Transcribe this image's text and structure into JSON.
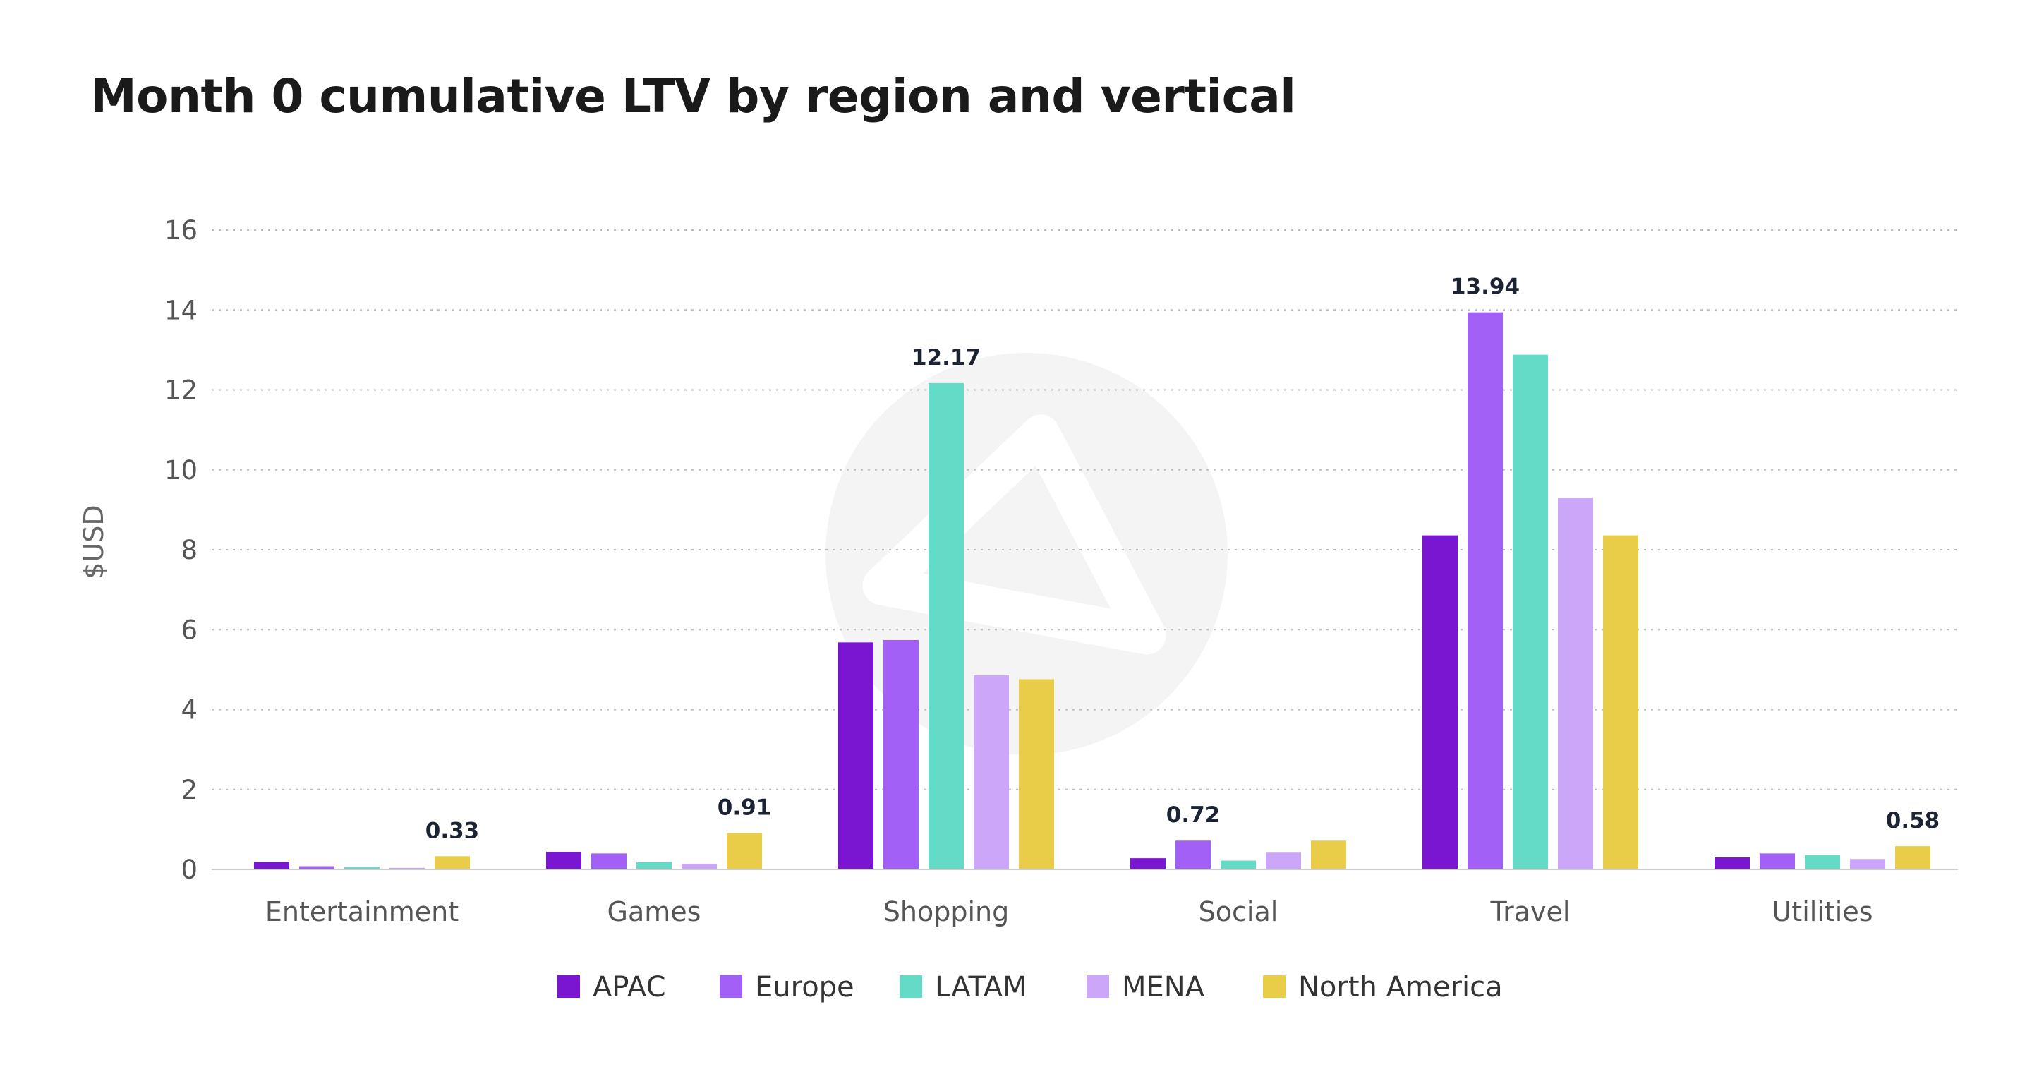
{
  "chart_data": {
    "type": "bar",
    "title": "Month 0 cumulative LTV by region and vertical",
    "xlabel": "",
    "ylabel": "$USD",
    "ylim": [
      0,
      16
    ],
    "yticks": [
      0,
      2,
      4,
      6,
      8,
      10,
      12,
      14,
      16
    ],
    "grid": true,
    "legend_position": "bottom",
    "categories": [
      "Entertainment",
      "Games",
      "Shopping",
      "Social",
      "Travel",
      "Utilities"
    ],
    "series": [
      {
        "name": "APAC",
        "color": "#7a16d2",
        "values": [
          0.18,
          0.44,
          5.68,
          0.28,
          8.36,
          0.3
        ]
      },
      {
        "name": "Europe",
        "color": "#a360f6",
        "values": [
          0.08,
          0.4,
          5.74,
          0.72,
          13.94,
          0.4
        ]
      },
      {
        "name": "LATAM",
        "color": "#63dbc7",
        "values": [
          0.06,
          0.18,
          12.17,
          0.22,
          12.88,
          0.36
        ]
      },
      {
        "name": "MENA",
        "color": "#cba6f9",
        "values": [
          0.04,
          0.14,
          4.86,
          0.42,
          9.3,
          0.26
        ]
      },
      {
        "name": "North America",
        "color": "#e9cc48",
        "values": [
          0.33,
          0.91,
          4.76,
          0.72,
          8.36,
          0.58
        ]
      }
    ],
    "data_labels": [
      {
        "category": "Entertainment",
        "series": "North America",
        "text": "0.33"
      },
      {
        "category": "Games",
        "series": "North America",
        "text": "0.91"
      },
      {
        "category": "Shopping",
        "series": "LATAM",
        "text": "12.17"
      },
      {
        "category": "Social",
        "series": "Europe",
        "text": "0.72"
      },
      {
        "category": "Travel",
        "series": "Europe",
        "text": "13.94"
      },
      {
        "category": "Utilities",
        "series": "North America",
        "text": "0.58"
      }
    ]
  }
}
